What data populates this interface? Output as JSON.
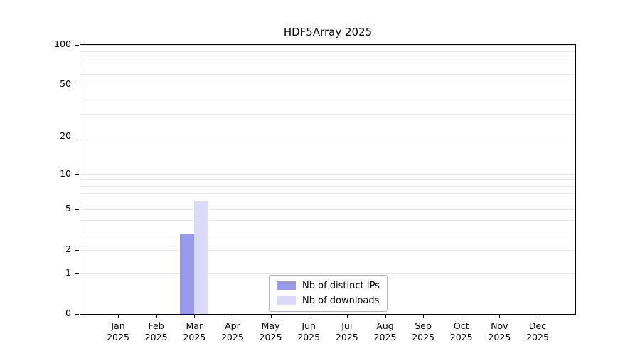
{
  "chart_data": {
    "type": "bar",
    "title": "HDF5Array 2025",
    "categories": [
      "Jan 2025",
      "Feb 2025",
      "Mar 2025",
      "Apr 2025",
      "May 2025",
      "Jun 2025",
      "Jul 2025",
      "Aug 2025",
      "Sep 2025",
      "Oct 2025",
      "Nov 2025",
      "Dec 2025"
    ],
    "series": [
      {
        "name": "Nb of distinct IPs",
        "color": "#9999ee",
        "values": [
          0,
          0,
          3,
          0,
          0,
          0,
          0,
          0,
          0,
          0,
          0,
          0
        ]
      },
      {
        "name": "Nb of downloads",
        "color": "#dadaf8",
        "values": [
          0,
          0,
          6,
          0,
          0,
          0,
          0,
          0,
          0,
          0,
          0,
          0
        ]
      }
    ],
    "yscale": "log1p",
    "ylim": [
      0,
      100
    ],
    "ytick_values": [
      0,
      1,
      2,
      5,
      10,
      20,
      50,
      100
    ],
    "grid_values": [
      1,
      2,
      3,
      4,
      5,
      6,
      7,
      8,
      9,
      10,
      20,
      30,
      40,
      50,
      60,
      70,
      80,
      90,
      100
    ],
    "grid": "horizontal-minor",
    "legend_position": "lower-center",
    "colors": {
      "grid": "#e7e7e7",
      "axis": "#000000",
      "text": "#000000",
      "legend_border": "#b3b3b3",
      "background": "#ffffff"
    }
  }
}
